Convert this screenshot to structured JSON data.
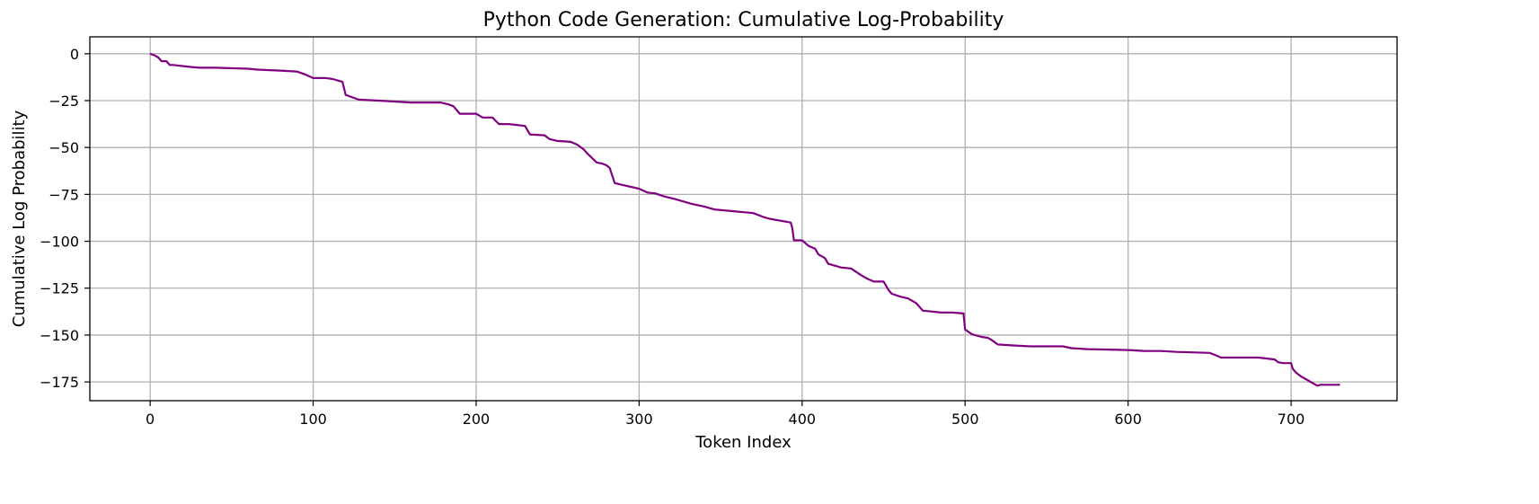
{
  "chart_data": {
    "type": "line",
    "title": "Python Code Generation: Cumulative Log-Probability",
    "xlabel": "Token Index",
    "ylabel": "Cumulative Log Probability",
    "xlim": [
      -37,
      765
    ],
    "ylim": [
      -185,
      9
    ],
    "grid": true,
    "x_ticks": [
      0,
      100,
      200,
      300,
      400,
      500,
      600,
      700
    ],
    "y_ticks": [
      0,
      -25,
      -50,
      -75,
      -100,
      -125,
      -150,
      -175
    ],
    "series": [
      {
        "color": "#800080",
        "x": [
          0,
          3,
          5,
          7,
          10,
          12,
          14,
          24,
          30,
          40,
          60,
          66,
          80,
          90,
          95,
          100,
          108,
          112,
          116,
          118,
          120,
          128,
          140,
          150,
          160,
          178,
          183,
          186,
          190,
          200,
          204,
          210,
          214,
          220,
          230,
          233,
          242,
          245,
          250,
          258,
          262,
          266,
          268,
          274,
          277,
          280,
          282,
          285,
          290,
          295,
          300,
          305,
          310,
          315,
          322,
          328,
          332,
          340,
          346,
          358,
          370,
          376,
          380,
          393,
          394,
          395,
          400,
          404,
          408,
          410,
          414,
          416,
          420,
          424,
          430,
          436,
          440,
          444,
          450,
          453,
          455,
          460,
          465,
          470,
          474,
          480,
          485,
          492,
          499,
          500,
          504,
          510,
          514,
          516,
          520,
          528,
          540,
          560,
          565,
          575,
          600,
          610,
          620,
          630,
          650,
          653,
          657,
          660,
          680,
          690,
          692,
          695,
          700,
          701,
          703,
          706,
          710,
          716,
          718,
          730
        ],
        "y": [
          0,
          -1,
          -2,
          -4,
          -4,
          -6,
          -6,
          -7,
          -7.5,
          -7.5,
          -8,
          -8.5,
          -9,
          -9.5,
          -11,
          -13,
          -13,
          -13.5,
          -14.5,
          -15,
          -22,
          -24.5,
          -25,
          -25.5,
          -26,
          -26,
          -27,
          -28,
          -32,
          -32,
          -34,
          -34,
          -37.5,
          -37.5,
          -38.5,
          -43,
          -43.5,
          -45.5,
          -46.5,
          -47,
          -48.5,
          -51,
          -53,
          -58,
          -58.5,
          -59.5,
          -61,
          -69,
          -70,
          -71,
          -72,
          -74,
          -74.5,
          -76,
          -77.5,
          -79,
          -80,
          -81.5,
          -83,
          -84,
          -85,
          -87,
          -88,
          -90,
          -93,
          -99.5,
          -99.5,
          -102.5,
          -104,
          -107,
          -109,
          -112,
          -113,
          -114,
          -114.5,
          -118,
          -120,
          -121.5,
          -121.5,
          -126,
          -128,
          -129.5,
          -130.5,
          -133,
          -137,
          -137.5,
          -138,
          -138,
          -138.5,
          -147,
          -149.5,
          -151,
          -151.5,
          -152.5,
          -155,
          -155.5,
          -156,
          -156,
          -157,
          -157.5,
          -158,
          -158.5,
          -158.5,
          -159,
          -159.5,
          -160.5,
          -162,
          -162,
          -162,
          -163,
          -164.5,
          -165,
          -165,
          -168,
          -170,
          -172,
          -174,
          -177,
          -176.5,
          -176.5
        ]
      }
    ]
  }
}
